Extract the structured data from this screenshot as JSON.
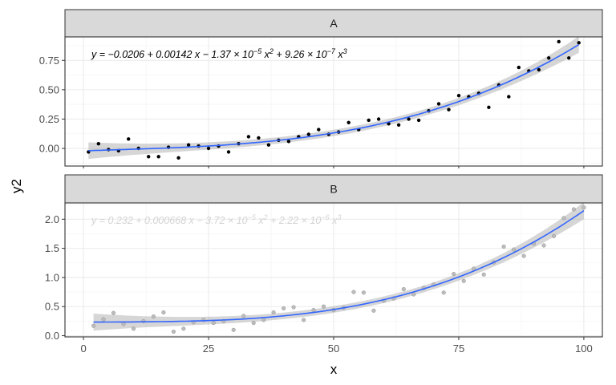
{
  "chart_data": {
    "type": "scatter",
    "xlabel": "x",
    "ylabel": "y2",
    "xlim": [
      0,
      100
    ],
    "x_ticks": [
      "0",
      "25",
      "50",
      "75",
      "100"
    ],
    "x_tick_values": [
      0,
      25,
      50,
      75,
      100
    ],
    "grid": true,
    "panels": [
      {
        "strip": "A",
        "ylim": [
          -0.15,
          0.95
        ],
        "y_ticks": [
          "0.00",
          "0.25",
          "0.50",
          "0.75"
        ],
        "y_tick_values": [
          0,
          0.25,
          0.5,
          0.75
        ],
        "point_color": "#000000",
        "equation_color": "#000000",
        "equation_parts": [
          "y = −0.0206 + 0.00142 x − 1.37 × 10",
          "−5",
          " x",
          "2",
          " + 9.26 × 10",
          "−7",
          " x",
          "3"
        ],
        "coef": [
          -0.0206,
          0.00142,
          -1.37e-05,
          9.26e-07
        ],
        "x": [
          1,
          3,
          5,
          7,
          9,
          11,
          13,
          15,
          17,
          19,
          21,
          23,
          25,
          27,
          29,
          31,
          33,
          35,
          37,
          39,
          41,
          43,
          45,
          47,
          49,
          51,
          53,
          55,
          57,
          59,
          61,
          63,
          65,
          67,
          69,
          71,
          73,
          75,
          77,
          79,
          81,
          83,
          85,
          87,
          89,
          91,
          93,
          95,
          97,
          99
        ],
        "y": [
          -0.03,
          0.04,
          -0.01,
          -0.02,
          0.08,
          0.0,
          -0.07,
          -0.07,
          0.01,
          -0.08,
          0.03,
          0.02,
          0.0,
          0.02,
          -0.03,
          0.04,
          0.1,
          0.09,
          0.03,
          0.07,
          0.06,
          0.1,
          0.12,
          0.16,
          0.12,
          0.14,
          0.22,
          0.16,
          0.24,
          0.25,
          0.21,
          0.2,
          0.25,
          0.24,
          0.32,
          0.38,
          0.33,
          0.45,
          0.44,
          0.47,
          0.35,
          0.54,
          0.44,
          0.69,
          0.66,
          0.67,
          0.77,
          0.91,
          0.77,
          0.9
        ]
      },
      {
        "strip": "B",
        "ylim": [
          -0.02,
          2.28
        ],
        "y_ticks": [
          "0.0",
          "0.5",
          "1.0",
          "1.5",
          "2.0"
        ],
        "y_tick_values": [
          0,
          0.5,
          1,
          1.5,
          2
        ],
        "point_color": "#bdbdbd",
        "equation_color": "#d3d3d3",
        "equation_parts": [
          "y = 0.232 + 0.000668 x − 3.72 × 10",
          "−5",
          " x",
          "2",
          " + 2.22 × 10",
          "−6",
          " x",
          "3"
        ],
        "coef": [
          0.232,
          0.000668,
          -3.72e-05,
          2.22e-06
        ],
        "x": [
          2,
          4,
          6,
          8,
          10,
          12,
          14,
          16,
          18,
          20,
          22,
          24,
          26,
          28,
          30,
          32,
          34,
          36,
          38,
          40,
          42,
          44,
          46,
          48,
          50,
          52,
          54,
          56,
          58,
          60,
          62,
          64,
          66,
          68,
          70,
          72,
          74,
          76,
          78,
          80,
          82,
          84,
          86,
          88,
          90,
          92,
          94,
          96,
          98,
          100
        ],
        "y": [
          0.17,
          0.28,
          0.39,
          0.2,
          0.12,
          0.25,
          0.33,
          0.4,
          0.07,
          0.12,
          0.23,
          0.27,
          0.22,
          0.25,
          0.1,
          0.34,
          0.22,
          0.27,
          0.4,
          0.47,
          0.49,
          0.27,
          0.44,
          0.5,
          0.44,
          0.48,
          0.75,
          0.74,
          0.43,
          0.6,
          0.64,
          0.8,
          0.71,
          0.82,
          0.88,
          0.74,
          1.06,
          0.94,
          1.15,
          1.05,
          1.26,
          1.53,
          1.48,
          1.37,
          1.58,
          1.55,
          1.71,
          2.02,
          2.17,
          2.2
        ]
      }
    ]
  },
  "colors": {
    "fit_line": "#3366ff",
    "ribbon": "#999999",
    "strip_fill": "#d9d9d9",
    "grid_major": "#ebebeb",
    "grid_minor": "#f5f5f5",
    "panel_border": "#333333"
  }
}
